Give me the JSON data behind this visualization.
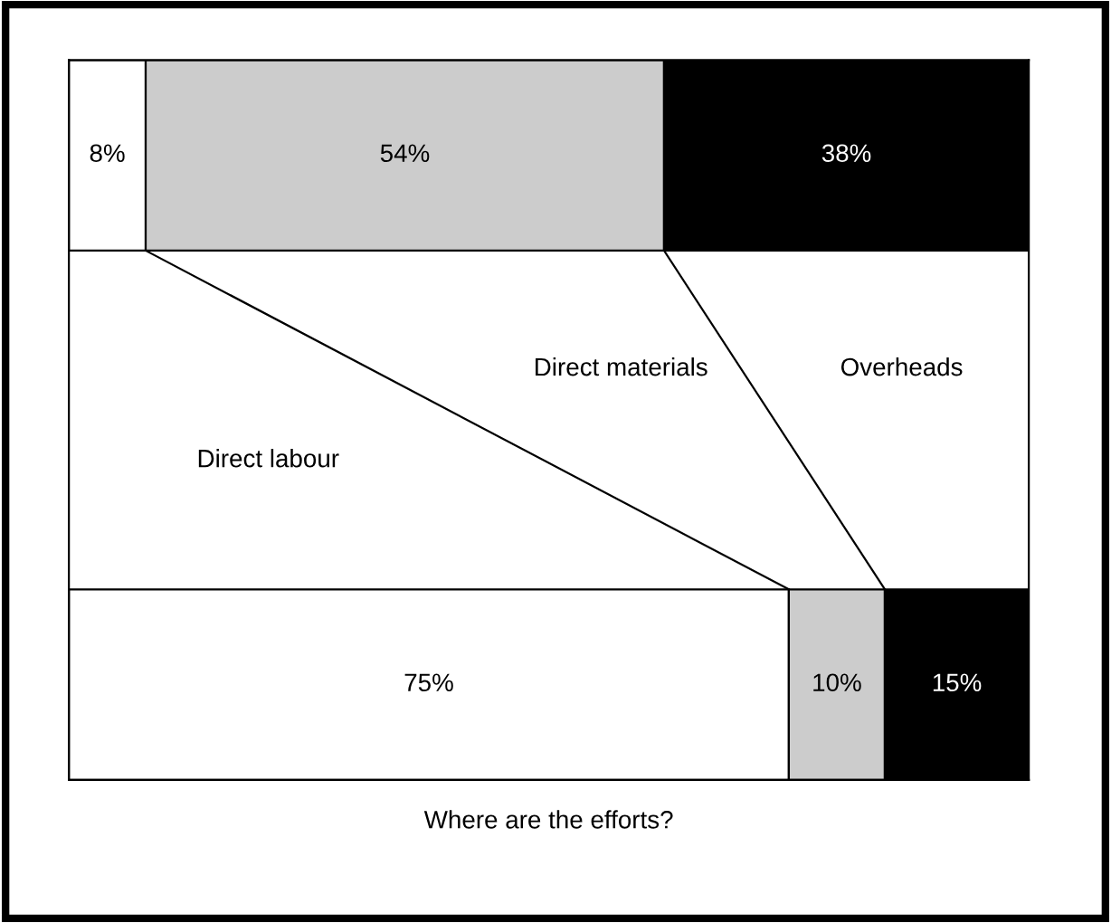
{
  "chart_data": {
    "type": "bar",
    "orientation": "horizontal",
    "stacked": true,
    "categories": [
      null,
      null
    ],
    "series": [
      {
        "color": "#ffffff",
        "values": [
          8,
          75
        ],
        "value_labels": [
          "8%",
          "75%"
        ]
      },
      {
        "color": "#cccccc",
        "values": [
          54,
          10
        ],
        "value_labels": [
          "54%",
          "10%"
        ]
      },
      {
        "color": "#000000",
        "values": [
          38,
          15
        ],
        "value_labels": [
          "38%",
          "15%"
        ]
      }
    ],
    "annotations": [
      "Direct labour",
      "Direct materials",
      "Overheads"
    ],
    "xlim": [
      0,
      100
    ],
    "tick_labels": false,
    "xlabel": "Where are the efforts?"
  }
}
